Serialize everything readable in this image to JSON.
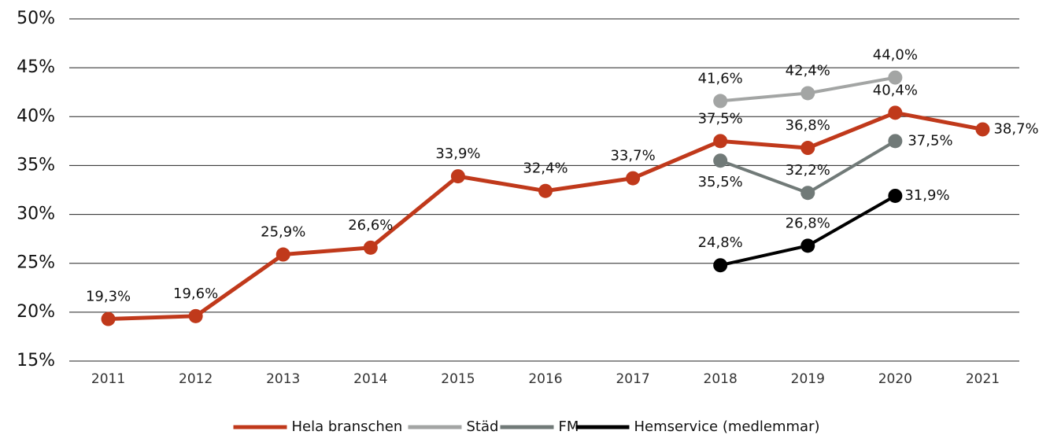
{
  "chart_data": {
    "type": "line",
    "categories": [
      "2011",
      "2012",
      "2013",
      "2014",
      "2015",
      "2016",
      "2017",
      "2018",
      "2019",
      "2020",
      "2021"
    ],
    "series": [
      {
        "name": "Hela branschen",
        "color": "#c0391b",
        "values": [
          19.3,
          19.6,
          25.9,
          26.6,
          33.9,
          32.4,
          33.7,
          37.5,
          36.8,
          40.4,
          38.7
        ],
        "value_labels": [
          "19,3%",
          "19,6%",
          "25,9%",
          "26,6%",
          "33,9%",
          "32,4%",
          "33,7%",
          "37,5%",
          "36,8%",
          "40,4%",
          "38,7%"
        ]
      },
      {
        "name": "Städ",
        "color": "#a3a5a4",
        "values": [
          null,
          null,
          null,
          null,
          null,
          null,
          null,
          41.6,
          42.4,
          44.0,
          null
        ],
        "value_labels": [
          null,
          null,
          null,
          null,
          null,
          null,
          null,
          "41,6%",
          "42,4%",
          "44,0%",
          null
        ]
      },
      {
        "name": "FM",
        "color": "#717a78",
        "values": [
          null,
          null,
          null,
          null,
          null,
          null,
          null,
          35.5,
          32.2,
          37.5,
          null
        ],
        "value_labels": [
          null,
          null,
          null,
          null,
          null,
          null,
          null,
          "35,5%",
          "32,2%",
          "37,5%",
          null
        ]
      },
      {
        "name": "Hemservice (medlemmar)",
        "color": "#000000",
        "values": [
          null,
          null,
          null,
          null,
          null,
          null,
          null,
          24.8,
          26.8,
          31.9,
          null
        ],
        "value_labels": [
          null,
          null,
          null,
          null,
          null,
          null,
          null,
          "24,8%",
          "26,8%",
          "31,9%",
          null
        ]
      }
    ],
    "ylim": [
      15,
      50
    ],
    "yticks": [
      {
        "value": 15,
        "label": "15%"
      },
      {
        "value": 20,
        "label": "20%"
      },
      {
        "value": 25,
        "label": "25%"
      },
      {
        "value": 30,
        "label": "30%"
      },
      {
        "value": 35,
        "label": "35%"
      },
      {
        "value": 40,
        "label": "40%"
      },
      {
        "value": 45,
        "label": "45%"
      },
      {
        "value": 50,
        "label": "50%"
      }
    ],
    "grid": true,
    "legend": "bottom"
  }
}
